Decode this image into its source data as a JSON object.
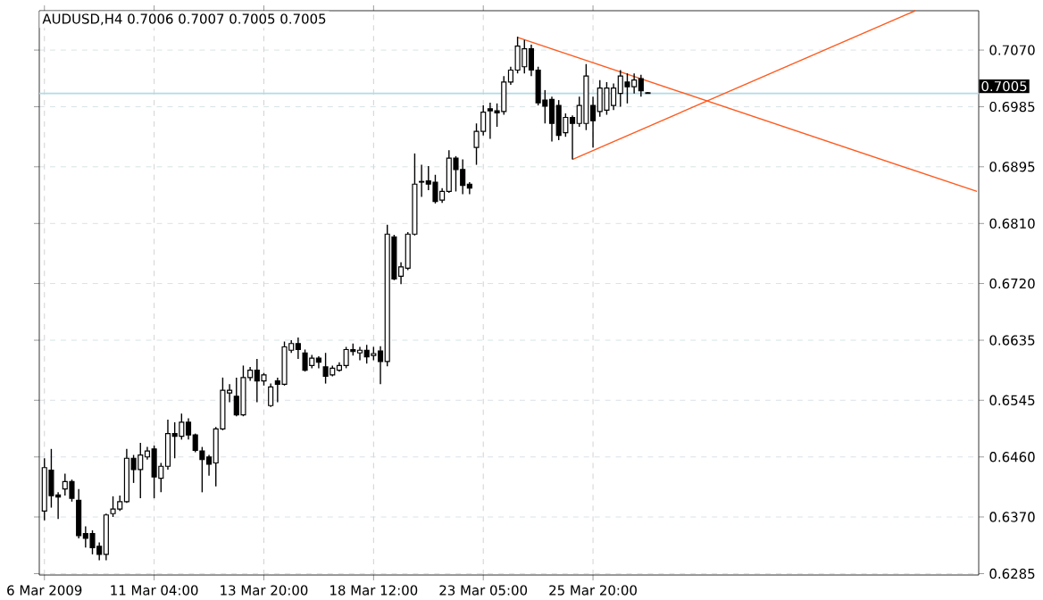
{
  "chart_data": {
    "type": "candlestick",
    "title": "AUDUSD,H4 0.7006 0.7007 0.7005 0.7005",
    "categories": [
      "6 Mar 2009",
      null,
      null,
      null,
      null,
      null,
      null,
      null,
      null,
      null,
      null,
      null,
      null,
      null,
      null,
      null,
      "11 Mar 04:00",
      null,
      null,
      null,
      null,
      null,
      null,
      null,
      null,
      null,
      null,
      null,
      null,
      null,
      null,
      null,
      "13 Mar 20:00",
      null,
      null,
      null,
      null,
      null,
      null,
      null,
      null,
      null,
      null,
      null,
      null,
      null,
      null,
      null,
      "18 Mar 12:00",
      null,
      null,
      null,
      null,
      null,
      null,
      null,
      null,
      null,
      null,
      null,
      null,
      null,
      null,
      null,
      "23 Mar 05:00",
      null,
      null,
      null,
      null,
      null,
      null,
      null,
      null,
      null,
      null,
      null,
      null,
      null,
      null,
      null,
      "25 Mar 20:00",
      null,
      null,
      null,
      null,
      null,
      null,
      null,
      null,
      null,
      null,
      null,
      null,
      null,
      null,
      null,
      null,
      null,
      null,
      null,
      null,
      null,
      null,
      null,
      null,
      null,
      null,
      null,
      null,
      null,
      null,
      null,
      null,
      null,
      null,
      null,
      null,
      null,
      null,
      null,
      null,
      null,
      null,
      null,
      null,
      null,
      null,
      null,
      null,
      null,
      null,
      null,
      null,
      null,
      null,
      null,
      null
    ],
    "series": [
      {
        "type": "line",
        "color": "#ff5a1e",
        "values": [
          null,
          null,
          null,
          null,
          null,
          null,
          null,
          null,
          null,
          null,
          null,
          null,
          null,
          null,
          null,
          null,
          null,
          null,
          null,
          null,
          null,
          null,
          null,
          null,
          null,
          null,
          null,
          null,
          null,
          null,
          null,
          null,
          null,
          null,
          null,
          null,
          null,
          null,
          null,
          null,
          null,
          null,
          null,
          null,
          null,
          null,
          null,
          null,
          null,
          null,
          null,
          null,
          null,
          null,
          null,
          null,
          null,
          null,
          null,
          null,
          null,
          null,
          null,
          null,
          null,
          null,
          null,
          null,
          null,
          0.7089,
          null,
          null,
          null,
          null,
          null,
          null,
          null,
          null,
          null,
          null,
          null,
          null,
          null,
          null,
          null,
          null,
          null,
          null,
          null,
          null,
          null,
          null,
          null,
          null,
          null,
          null,
          null,
          null,
          null,
          null,
          null,
          null,
          null,
          null,
          null,
          null,
          null,
          null,
          null,
          null,
          null,
          null,
          null,
          null,
          null,
          null,
          null,
          null,
          null,
          null,
          null,
          null,
          null,
          null,
          null,
          null,
          null,
          null,
          null,
          null,
          null,
          null,
          null,
          null,
          null,
          null,
          0.6858
        ]
      },
      {
        "type": "line",
        "color": "#ff5a1e",
        "values": [
          null,
          null,
          null,
          null,
          null,
          null,
          null,
          null,
          null,
          null,
          null,
          null,
          null,
          null,
          null,
          null,
          null,
          null,
          null,
          null,
          null,
          null,
          null,
          null,
          null,
          null,
          null,
          null,
          null,
          null,
          null,
          null,
          null,
          null,
          null,
          null,
          null,
          null,
          null,
          null,
          null,
          null,
          null,
          null,
          null,
          null,
          null,
          null,
          null,
          null,
          null,
          null,
          null,
          null,
          null,
          null,
          null,
          null,
          null,
          null,
          null,
          null,
          null,
          null,
          null,
          null,
          null,
          null,
          null,
          null,
          null,
          null,
          null,
          null,
          null,
          null,
          null,
          0.6906,
          null,
          null,
          null,
          null,
          null,
          null,
          null,
          null,
          null,
          null,
          null,
          null,
          null,
          null,
          null,
          null,
          null,
          null,
          null,
          null,
          null,
          null,
          null,
          null,
          null,
          null,
          null,
          null,
          null,
          null,
          null,
          null,
          null,
          null,
          null,
          null,
          null,
          null,
          null,
          null,
          null,
          null,
          null,
          null,
          null,
          null,
          null,
          null,
          null,
          0.7129,
          null,
          null,
          null,
          null,
          null,
          null,
          null,
          null,
          null
        ]
      },
      {
        "type": "candlestick",
        "color": "#000000",
        "ohlc": [
          [
            0.6379,
            0.6458,
            0.6365,
            0.6444
          ],
          [
            0.644,
            0.6472,
            0.6384,
            0.6402
          ],
          [
            0.6403,
            0.6407,
            0.6367,
            0.64
          ],
          [
            0.6412,
            0.6435,
            0.6402,
            0.6423
          ],
          [
            0.6423,
            0.6426,
            0.6393,
            0.6398
          ],
          [
            0.6395,
            0.6412,
            0.6338,
            0.6342
          ],
          [
            0.6345,
            0.6356,
            0.6324,
            0.6338
          ],
          [
            0.6345,
            0.635,
            0.6314,
            0.6324
          ],
          [
            0.6326,
            0.6332,
            0.6305,
            0.6314
          ],
          [
            0.6314,
            0.6375,
            0.6305,
            0.6373
          ],
          [
            0.6375,
            0.6401,
            0.637,
            0.6382
          ],
          [
            0.6382,
            0.6402,
            0.6379,
            0.6393
          ],
          [
            0.6393,
            0.6472,
            0.6391,
            0.6458
          ],
          [
            0.6458,
            0.6463,
            0.6421,
            0.6441
          ],
          [
            0.6441,
            0.6481,
            0.6398,
            0.6463
          ],
          [
            0.646,
            0.6475,
            0.6456,
            0.6469
          ],
          [
            0.6472,
            0.6477,
            0.6398,
            0.643
          ],
          [
            0.6428,
            0.6451,
            0.6407,
            0.6446
          ],
          [
            0.6446,
            0.6516,
            0.6441,
            0.6495
          ],
          [
            0.6495,
            0.6512,
            0.6458,
            0.6491
          ],
          [
            0.6491,
            0.6525,
            0.6486,
            0.6512
          ],
          [
            0.6512,
            0.6518,
            0.6486,
            0.6493
          ],
          [
            0.6493,
            0.6495,
            0.6467,
            0.647
          ],
          [
            0.6469,
            0.6475,
            0.6407,
            0.6456
          ],
          [
            0.646,
            0.6463,
            0.6432,
            0.6449
          ],
          [
            0.6451,
            0.6505,
            0.6416,
            0.6502
          ],
          [
            0.6502,
            0.6579,
            0.65,
            0.656
          ],
          [
            0.6556,
            0.6569,
            0.6542,
            0.656
          ],
          [
            0.6551,
            0.6579,
            0.6521,
            0.6523
          ],
          [
            0.6523,
            0.6597,
            0.6521,
            0.6579
          ],
          [
            0.6579,
            0.6595,
            0.6574,
            0.659
          ],
          [
            0.659,
            0.6607,
            0.6542,
            0.6574
          ],
          [
            0.6574,
            0.6586,
            0.6567,
            0.6583
          ],
          [
            0.6537,
            0.657,
            0.6535,
            0.6565
          ],
          [
            0.6574,
            0.6579,
            0.6542,
            0.6569
          ],
          [
            0.6569,
            0.6633,
            0.6567,
            0.6625
          ],
          [
            0.662,
            0.6635,
            0.6616,
            0.663
          ],
          [
            0.663,
            0.6639,
            0.6607,
            0.6621
          ],
          [
            0.6616,
            0.6621,
            0.6588,
            0.659
          ],
          [
            0.6597,
            0.6613,
            0.6593,
            0.6608
          ],
          [
            0.6608,
            0.6611,
            0.6593,
            0.6602
          ],
          [
            0.6595,
            0.6616,
            0.657,
            0.6581
          ],
          [
            0.6583,
            0.6597,
            0.6581,
            0.6593
          ],
          [
            0.659,
            0.6602,
            0.6588,
            0.6597
          ],
          [
            0.6597,
            0.6625,
            0.6593,
            0.6621
          ],
          [
            0.6621,
            0.663,
            0.6612,
            0.6618
          ],
          [
            0.6616,
            0.6625,
            0.6605,
            0.662
          ],
          [
            0.662,
            0.6628,
            0.66,
            0.661
          ],
          [
            0.6612,
            0.6625,
            0.6605,
            0.6615
          ],
          [
            0.6619,
            0.6626,
            0.6569,
            0.6603
          ],
          [
            0.6603,
            0.6808,
            0.6596,
            0.6794
          ],
          [
            0.679,
            0.6793,
            0.6725,
            0.6727
          ],
          [
            0.6731,
            0.6752,
            0.6719,
            0.6745
          ],
          [
            0.6743,
            0.6797,
            0.674,
            0.6794
          ],
          [
            0.6794,
            0.6915,
            0.6792,
            0.6869
          ],
          [
            0.6872,
            0.6898,
            0.685,
            0.6873
          ],
          [
            0.6874,
            0.6896,
            0.686,
            0.6869
          ],
          [
            0.6872,
            0.6883,
            0.684,
            0.6843
          ],
          [
            0.6845,
            0.6863,
            0.6841,
            0.6858
          ],
          [
            0.6858,
            0.692,
            0.6856,
            0.6908
          ],
          [
            0.6908,
            0.6911,
            0.6858,
            0.6891
          ],
          [
            0.6891,
            0.6906,
            0.6854,
            0.6867
          ],
          [
            0.6869,
            0.6872,
            0.6854,
            0.6863
          ],
          [
            0.6924,
            0.696,
            0.6898,
            0.6948
          ],
          [
            0.6948,
            0.6987,
            0.6942,
            0.6977
          ],
          [
            0.6982,
            0.6991,
            0.6937,
            0.6979
          ],
          [
            0.6979,
            0.699,
            0.6955,
            0.6976
          ],
          [
            0.6978,
            0.7031,
            0.6973,
            0.7022
          ],
          [
            0.7022,
            0.7045,
            0.7018,
            0.704
          ],
          [
            0.704,
            0.709,
            0.7035,
            0.7076
          ],
          [
            0.7045,
            0.7085,
            0.7035,
            0.7072
          ],
          [
            0.7072,
            0.7078,
            0.7031,
            0.704
          ],
          [
            0.704,
            0.7045,
            0.6987,
            0.6991
          ],
          [
            0.6995,
            0.701,
            0.696,
            0.6986
          ],
          [
            0.6996,
            0.7,
            0.6933,
            0.696
          ],
          [
            0.6987,
            0.6995,
            0.6935,
            0.6942
          ],
          [
            0.6946,
            0.6975,
            0.694,
            0.6969
          ],
          [
            0.6969,
            0.6972,
            0.6906,
            0.696
          ],
          [
            0.696,
            0.7,
            0.6955,
            0.6987
          ],
          [
            0.696,
            0.7049,
            0.695,
            0.7031
          ],
          [
            0.6987,
            0.7,
            0.6924,
            0.6964
          ],
          [
            0.6978,
            0.7025,
            0.697,
            0.7013
          ],
          [
            0.698,
            0.7022,
            0.6973,
            0.7013
          ],
          [
            0.6987,
            0.702,
            0.698,
            0.7013
          ],
          [
            0.7005,
            0.704,
            0.6985,
            0.7031
          ],
          [
            0.7022,
            0.7035,
            0.699,
            0.7015
          ],
          [
            0.7015,
            0.7035,
            0.7005,
            0.7025
          ],
          [
            0.7027,
            0.7033,
            0.7,
            0.7009
          ],
          [
            0.7006,
            0.7007,
            0.7005,
            0.7005
          ],
          null,
          null,
          null,
          null,
          null,
          null,
          null,
          null,
          null,
          null,
          null,
          null,
          null,
          null,
          null,
          null,
          null,
          null,
          null,
          null,
          null,
          null,
          null,
          null,
          null,
          null,
          null,
          null,
          null,
          null,
          null,
          null,
          null,
          null,
          null,
          null,
          null,
          null,
          null,
          null,
          null,
          null,
          null,
          null,
          null,
          null,
          null,
          null
        ]
      }
    ],
    "ylim": [
      0.6283,
      0.7129
    ],
    "yticks": [
      0.6285,
      {
        "value": 0.637,
        "label": "0.6370"
      },
      {
        "value": 0.646,
        "label": "0.6460"
      },
      0.6545,
      0.6635,
      {
        "value": 0.672,
        "label": "0.6720"
      },
      {
        "value": 0.681,
        "label": "0.6810"
      },
      0.6895,
      0.6985,
      {
        "value": 0.707,
        "label": "0.7070"
      }
    ],
    "ref_lines": [
      {
        "axis": "y",
        "value": 0.7005,
        "label": "0.7005",
        "color": "#b0dce6"
      }
    ],
    "grid": true
  }
}
